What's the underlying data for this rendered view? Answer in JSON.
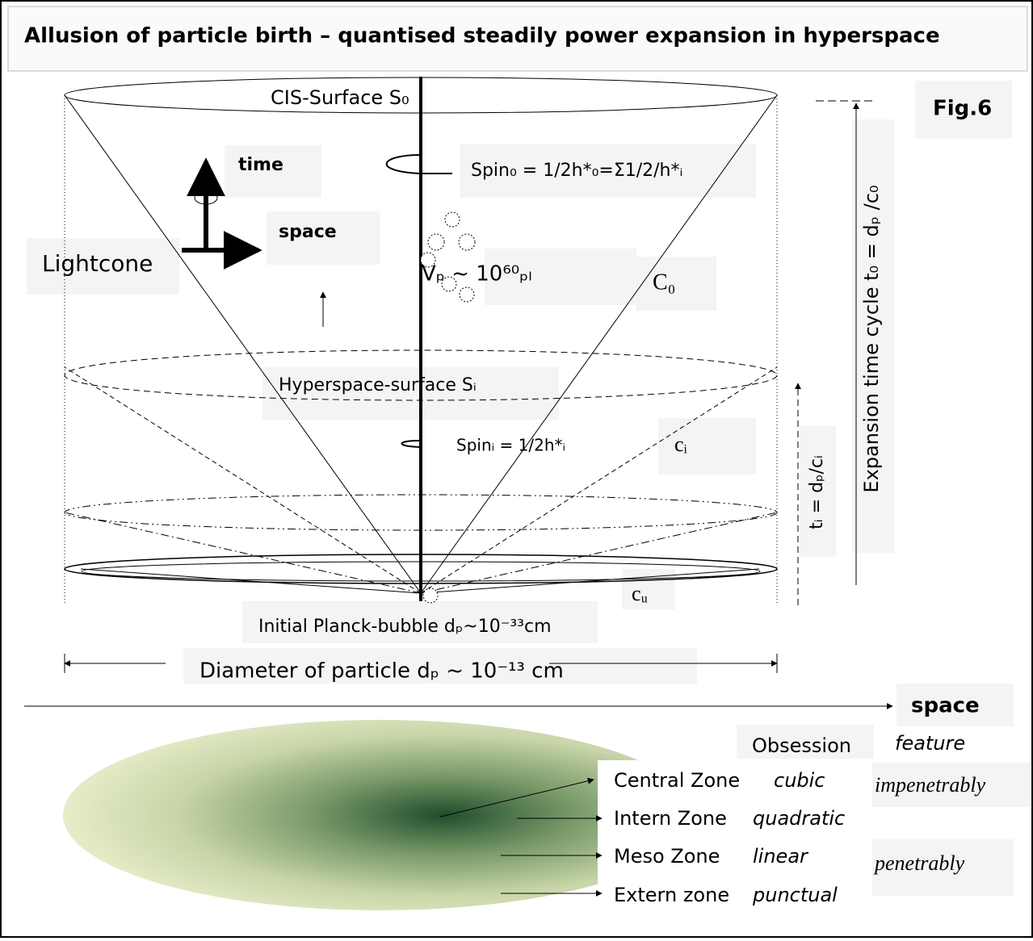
{
  "title": "Allusion of particle birth – quantised steadily power expansion in hyperspace",
  "fig_label": "Fig.6",
  "diagram": {
    "cis_surface": "CIS-Surface S₀",
    "time": "time",
    "space_small": "space",
    "spin_0": "Spin₀ = 1/2h*₀=Σ1/2/h*ᵢ",
    "lightcone": "Lightcone",
    "volume": "Vₚ ~ 10⁶⁰ₚₗ",
    "c_0": "C₀",
    "hyperspace_surface": "Hyperspace-surface Sᵢ",
    "spin_i": "Spinᵢ = 1/2h*ᵢ",
    "c_i": "cᵢ",
    "c_u": "cᵤ",
    "planck_bubble": "Initial Planck-bubble dₚ~10⁻³³cm",
    "diameter": "Diameter of particle dₚ ~ 10⁻¹³ cm",
    "t_i": "tᵢ = dₚ/cᵢ",
    "expansion": "Expansion time cycle t₀ = dₚ /c₀",
    "space_axis": "space"
  },
  "zones": {
    "header": [
      "Obsession",
      "feature"
    ],
    "rows": [
      [
        "Central Zone",
        "cubic"
      ],
      [
        "Intern Zone",
        "quadratic"
      ],
      [
        "Meso Zone",
        "linear"
      ],
      [
        "Extern zone",
        "punctual"
      ]
    ],
    "features": [
      "impenetrably",
      "penetrably"
    ]
  }
}
